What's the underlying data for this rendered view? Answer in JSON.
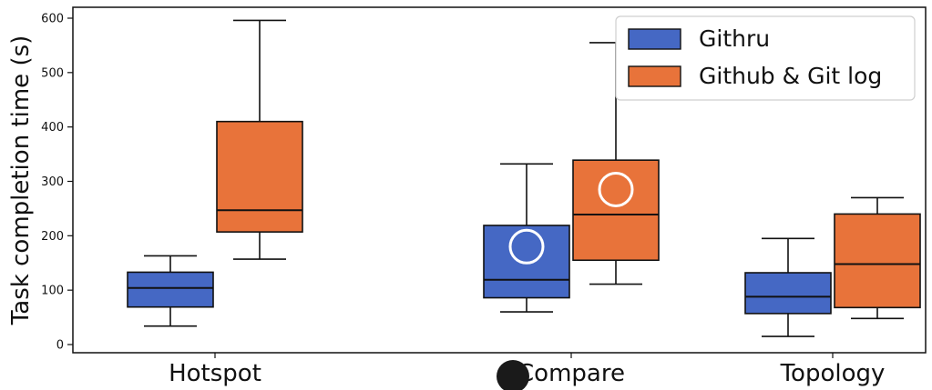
{
  "chart_data": {
    "type": "box",
    "ylabel": "Task completion time (s)",
    "xlabel": "",
    "ylim": [
      -15,
      610
    ],
    "yticks": [
      0,
      100,
      200,
      300,
      400,
      500,
      600
    ],
    "categories": [
      "Hotspot",
      "Compare",
      "Topology"
    ],
    "legend_position": "top-right",
    "series": [
      {
        "name": "Githru",
        "color": "#4568c4",
        "boxes": [
          {
            "whislo": 34,
            "q1": 69,
            "med": 104,
            "q3": 133,
            "whishi": 163
          },
          {
            "whislo": 60,
            "q1": 86,
            "med": 119,
            "q3": 219,
            "whishi": 332
          },
          {
            "whislo": 15,
            "q1": 57,
            "med": 88,
            "q3": 132,
            "whishi": 195
          }
        ]
      },
      {
        "name": "Github & Git log",
        "color": "#e8733a",
        "boxes": [
          {
            "whislo": 157,
            "q1": 207,
            "med": 247,
            "q3": 410,
            "whishi": 596
          },
          {
            "whislo": 111,
            "q1": 155,
            "med": 239,
            "q3": 339,
            "whishi": 555
          },
          {
            "whislo": 48,
            "q1": 68,
            "med": 148,
            "q3": 240,
            "whishi": 270
          }
        ]
      }
    ],
    "annotations": [
      {
        "type": "circle-marker",
        "color": "#ffffff",
        "category": "Compare",
        "series": "Githru",
        "value": 180
      },
      {
        "type": "circle-marker",
        "color": "#ffffff",
        "category": "Compare",
        "series": "Github & Git log",
        "value": 285
      }
    ]
  },
  "overlay": {
    "occluder_color": "#1a1a1a"
  }
}
